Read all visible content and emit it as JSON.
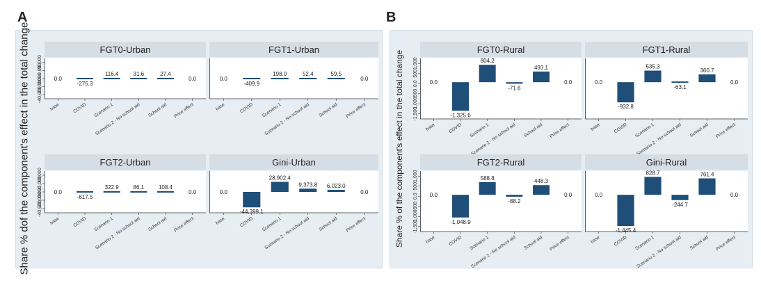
{
  "figure": {
    "panel_a_label": "A",
    "panel_b_label": "B",
    "panel_a_ylabel": "Share % dof the component's effect in the total change",
    "panel_b_ylabel": "Share % of the component's effect in the total change"
  },
  "colors": {
    "bar": "#1f4e79",
    "strip": "#d6dee5",
    "plot_bg": "#ffffff",
    "panel_bg": "#e7eef3"
  },
  "chart_data": [
    {
      "type": "bar",
      "panel": "A",
      "title": "FGT0-Urban",
      "categories": [
        "base",
        "COVID",
        "Scenario 1",
        "Scenario 2 - No school aid",
        "School aid",
        "Price effect"
      ],
      "values": [
        0.0,
        -275.3,
        116.4,
        31.6,
        27.4,
        0.0
      ],
      "value_labels": [
        "0.0",
        "-275.3",
        "116.4",
        "31.6",
        "27.4",
        "0.0"
      ],
      "ylim": [
        -60000,
        60000
      ],
      "yticks": [
        "-40,000",
        "-20,000",
        "0.000",
        "20,000",
        "40,000"
      ],
      "yticks_note": "tick labels overlap and are illegible in the original"
    },
    {
      "type": "bar",
      "panel": "A",
      "title": "FGT1-Urban",
      "categories": [
        "base",
        "COVID",
        "Scenario 1",
        "Scenario 2 - No school aid",
        "School aid",
        "Price effect"
      ],
      "values": [
        0.0,
        -409.9,
        198.0,
        52.4,
        59.5,
        0.0
      ],
      "value_labels": [
        "0.0",
        "-409.9",
        "198.0",
        "52.4",
        "59.5",
        "0.0"
      ],
      "ylim": [
        -60000,
        60000
      ]
    },
    {
      "type": "bar",
      "panel": "A",
      "title": "FGT2-Urban",
      "categories": [
        "base",
        "COVID",
        "Scenario 1",
        "Scenario 2 - No school aid",
        "School aid",
        "Price effect"
      ],
      "values": [
        0.0,
        -617.5,
        322.9,
        86.1,
        108.4,
        0.0
      ],
      "value_labels": [
        "0.0",
        "-617.5",
        "322.9",
        "86.1",
        "108.4",
        "0.0"
      ],
      "ylim": [
        -60000,
        60000
      ],
      "yticks": [
        "-40,000",
        "-20,000",
        "0.000",
        "20,000",
        "40,000"
      ]
    },
    {
      "type": "bar",
      "panel": "A",
      "title": "Gini-Urban",
      "categories": [
        "base",
        "COVID",
        "Scenario 1",
        "Scenario 2 - No school aid",
        "School aid",
        "Price effect"
      ],
      "values": [
        0.0,
        -44399.1,
        28902.4,
        9373.8,
        6023.0,
        0.0
      ],
      "value_labels": [
        "0.0",
        "-44,399.1",
        "28,902.4",
        "9,373.8",
        "6,023.0",
        "0.0"
      ],
      "ylim": [
        -60000,
        60000
      ]
    },
    {
      "type": "bar",
      "panel": "B",
      "title": "FGT0-Rural",
      "categories": [
        "base",
        "COVID",
        "Scenario 1",
        "Scenario 2 - No school aid",
        "School aid",
        "Price effect"
      ],
      "values": [
        0.0,
        -1325.6,
        804.2,
        -71.6,
        493.1,
        0.0
      ],
      "value_labels": [
        "0.0",
        "-1,325.6",
        "804.2",
        "-71.6",
        "493.1",
        "0.0"
      ],
      "ylim": [
        -1700,
        1100
      ],
      "yticks": [
        "-1,500",
        "-1,000",
        "-500",
        "0.0",
        "500",
        "1,000"
      ],
      "yticks_note": "tick labels overlap and are illegible in the original"
    },
    {
      "type": "bar",
      "panel": "B",
      "title": "FGT1-Rural",
      "categories": [
        "base",
        "COVID",
        "Scenario 1",
        "Scenario 2 - No school aid",
        "School aid",
        "Price effect"
      ],
      "values": [
        0.0,
        -932.8,
        535.3,
        -63.1,
        360.7,
        0.0
      ],
      "value_labels": [
        "0.0",
        "-932.8",
        "535.3",
        "-63.1",
        "360.7",
        "0.0"
      ],
      "ylim": [
        -1700,
        1100
      ]
    },
    {
      "type": "bar",
      "panel": "B",
      "title": "FGT2-Rural",
      "categories": [
        "base",
        "COVID",
        "Scenario 1",
        "Scenario 2 - No school aid",
        "School aid",
        "Price effect"
      ],
      "values": [
        0.0,
        -1048.9,
        588.8,
        -88.2,
        448.3,
        0.0
      ],
      "value_labels": [
        "0.0",
        "-1,048.9",
        "588.8",
        "-88.2",
        "448.3",
        "0.0"
      ],
      "ylim": [
        -1700,
        1100
      ],
      "yticks": [
        "-1,500",
        "-1,000",
        "-500",
        "0.0",
        "500",
        "1,000"
      ]
    },
    {
      "type": "bar",
      "panel": "B",
      "title": "Gini-Rural",
      "categories": [
        "base",
        "COVID",
        "Scenario 1",
        "Scenario 2 - No school aid",
        "School aid",
        "Price effect"
      ],
      "values": [
        0.0,
        -1445.4,
        828.7,
        -244.7,
        761.4,
        0.0
      ],
      "value_labels": [
        "0.0",
        "-1,445.4",
        "828.7",
        "-244.7",
        "761.4",
        "0.0"
      ],
      "ylim": [
        -1700,
        1100
      ]
    }
  ]
}
